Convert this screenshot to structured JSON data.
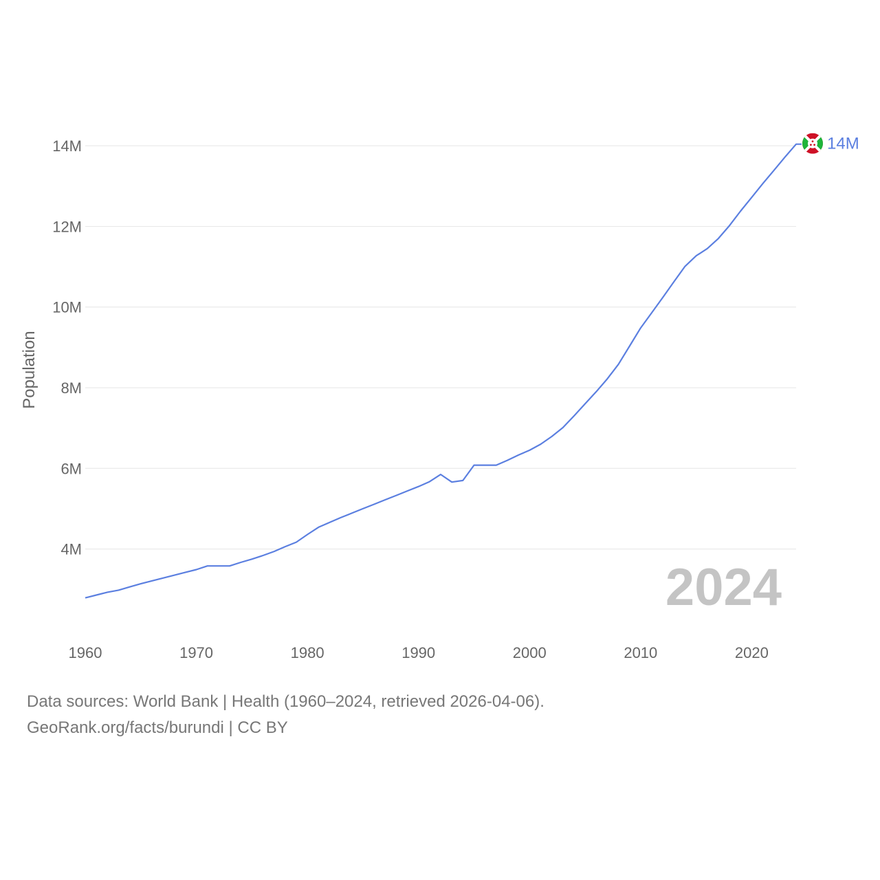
{
  "chart_data": {
    "type": "line",
    "ylabel": "Population",
    "xlabel": "",
    "xlim": [
      1960,
      2024
    ],
    "ylim": [
      2800000,
      14000000
    ],
    "y_ticks": [
      {
        "value": 4000000,
        "label": "4M"
      },
      {
        "value": 6000000,
        "label": "6M"
      },
      {
        "value": 8000000,
        "label": "8M"
      },
      {
        "value": 10000000,
        "label": "10M"
      },
      {
        "value": 12000000,
        "label": "12M"
      },
      {
        "value": 14000000,
        "label": "14M"
      }
    ],
    "x_ticks": [
      {
        "value": 1960,
        "label": "1960"
      },
      {
        "value": 1970,
        "label": "1970"
      },
      {
        "value": 1980,
        "label": "1980"
      },
      {
        "value": 1990,
        "label": "1990"
      },
      {
        "value": 2000,
        "label": "2000"
      },
      {
        "value": 2010,
        "label": "2010"
      },
      {
        "value": 2020,
        "label": "2020"
      }
    ],
    "series": [
      {
        "name": "Burundi",
        "color": "#5b7fe0",
        "x": [
          1960,
          1961,
          1962,
          1963,
          1964,
          1965,
          1966,
          1967,
          1968,
          1969,
          1970,
          1971,
          1972,
          1973,
          1974,
          1975,
          1976,
          1977,
          1978,
          1979,
          1980,
          1981,
          1982,
          1983,
          1984,
          1985,
          1986,
          1987,
          1988,
          1989,
          1990,
          1991,
          1992,
          1993,
          1994,
          1995,
          1996,
          1997,
          1998,
          1999,
          2000,
          2001,
          2002,
          2003,
          2004,
          2005,
          2006,
          2007,
          2008,
          2009,
          2010,
          2011,
          2012,
          2013,
          2014,
          2015,
          2016,
          2017,
          2018,
          2019,
          2020,
          2021,
          2022,
          2023,
          2024
        ],
        "values": [
          2790000,
          2860000,
          2930000,
          2980000,
          3060000,
          3140000,
          3210000,
          3280000,
          3350000,
          3420000,
          3490000,
          3580000,
          3580000,
          3580000,
          3670000,
          3750000,
          3840000,
          3940000,
          4060000,
          4170000,
          4360000,
          4540000,
          4660000,
          4780000,
          4890000,
          5000000,
          5110000,
          5220000,
          5330000,
          5440000,
          5550000,
          5670000,
          5850000,
          5660000,
          5700000,
          6080000,
          6080000,
          6080000,
          6200000,
          6330000,
          6450000,
          6600000,
          6790000,
          7010000,
          7300000,
          7600000,
          7900000,
          8220000,
          8580000,
          9030000,
          9480000,
          9860000,
          10240000,
          10630000,
          11010000,
          11270000,
          11450000,
          11700000,
          12020000,
          12380000,
          12720000,
          13060000,
          13390000,
          13720000,
          14040000
        ]
      }
    ],
    "end_label": "14M",
    "year_overlay": "2024"
  },
  "footer": {
    "line1": "Data sources: World Bank | Health (1960–2024, retrieved 2026-04-06).",
    "line2": "GeoRank.org/facts/burundi | CC BY"
  },
  "colors": {
    "line": "#5b7fe0",
    "flag_red": "#ce1126",
    "flag_green": "#1eb53a"
  }
}
